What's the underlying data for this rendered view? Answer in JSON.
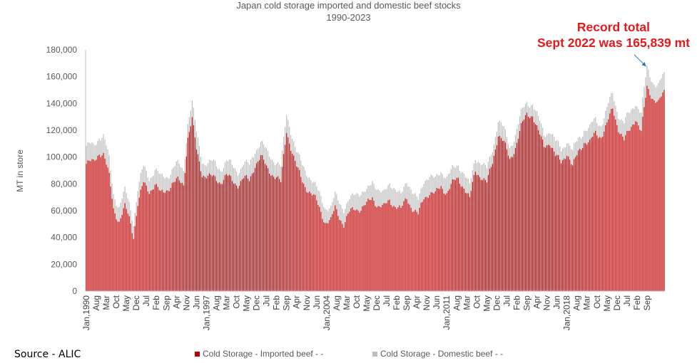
{
  "chart_data": {
    "type": "bar",
    "stacked": true,
    "title": "Japan cold storage imported and domestic beef stocks",
    "subtitle": "1990-2023",
    "ylabel": "MT in store",
    "xlabel": "",
    "ylim": [
      0,
      180000
    ],
    "yticks": [
      "0",
      "20,000",
      "40,000",
      "60,000",
      "80,000",
      "100,000",
      "120,000",
      "140,000",
      "160,000",
      "180,000"
    ],
    "ytick_values": [
      0,
      20000,
      40000,
      60000,
      80000,
      100000,
      120000,
      140000,
      160000,
      180000
    ],
    "xtick_labels": [
      "Jan,1990",
      "Aug",
      "Mar",
      "Oct",
      "May",
      "Dec",
      "Jul",
      "Feb",
      "Sep",
      "Apr",
      "Nov",
      "Jun",
      "Jan,1997",
      "Aug",
      "Mar",
      "Oct",
      "May",
      "Dec",
      "Jul",
      "Feb",
      "Sep",
      "Apr",
      "Nov",
      "Jun",
      "Jan,2004",
      "Aug",
      "Mar",
      "Oct",
      "May",
      "Dec",
      "Jul",
      "Feb",
      "Sep",
      "Apr",
      "Nov",
      "Jun",
      "Jan,2011",
      "Aug",
      "Mar",
      "Oct",
      "May",
      "Dec",
      "Jul",
      "Feb",
      "Sep",
      "Apr",
      "Nov",
      "Jun",
      "Jan,2018",
      "Aug",
      "Mar",
      "Oct",
      "May",
      "Dec",
      "Jul",
      "Feb",
      "Sep"
    ],
    "series": [
      {
        "name": "Cold Storage - Imported beef - -",
        "color": "#c00000"
      },
      {
        "name": "Cold Storage - Domestic beef - -",
        "color": "#bfbfbf"
      }
    ],
    "monthly_start": "1990-01",
    "anchors_imported": [
      [
        "1990-01",
        95000
      ],
      [
        "1990-06",
        96000
      ],
      [
        "1990-10",
        104000
      ],
      [
        "1991-01",
        102000
      ],
      [
        "1991-05",
        85000
      ],
      [
        "1991-08",
        62000
      ],
      [
        "1991-12",
        52000
      ],
      [
        "1992-04",
        62000
      ],
      [
        "1992-07",
        55000
      ],
      [
        "1992-10",
        42000
      ],
      [
        "1993-01",
        65000
      ],
      [
        "1993-05",
        80000
      ],
      [
        "1993-09",
        75000
      ],
      [
        "1994-01",
        80000
      ],
      [
        "1994-05",
        72000
      ],
      [
        "1994-09",
        76000
      ],
      [
        "1995-01",
        80000
      ],
      [
        "1995-05",
        82000
      ],
      [
        "1995-09",
        80000
      ],
      [
        "1995-12",
        115000
      ],
      [
        "1996-03",
        128000
      ],
      [
        "1996-06",
        105000
      ],
      [
        "1996-10",
        88000
      ],
      [
        "1997-03",
        85000
      ],
      [
        "1997-07",
        84000
      ],
      [
        "1997-11",
        82000
      ],
      [
        "1998-03",
        86000
      ],
      [
        "1998-07",
        82000
      ],
      [
        "1998-11",
        80000
      ],
      [
        "1999-03",
        84000
      ],
      [
        "1999-07",
        82000
      ],
      [
        "1999-11",
        95000
      ],
      [
        "2000-03",
        100000
      ],
      [
        "2000-07",
        92000
      ],
      [
        "2000-11",
        88000
      ],
      [
        "2001-02",
        85000
      ],
      [
        "2001-05",
        80000
      ],
      [
        "2001-09",
        120000
      ],
      [
        "2001-12",
        108000
      ],
      [
        "2002-04",
        92000
      ],
      [
        "2002-08",
        82000
      ],
      [
        "2002-12",
        76000
      ],
      [
        "2003-04",
        70000
      ],
      [
        "2003-08",
        62000
      ],
      [
        "2003-12",
        52000
      ],
      [
        "2004-04",
        52000
      ],
      [
        "2004-07",
        62000
      ],
      [
        "2004-10",
        56000
      ],
      [
        "2005-01",
        50000
      ],
      [
        "2005-05",
        58000
      ],
      [
        "2005-09",
        62000
      ],
      [
        "2006-01",
        62000
      ],
      [
        "2006-05",
        64000
      ],
      [
        "2006-09",
        70000
      ],
      [
        "2007-01",
        64000
      ],
      [
        "2007-05",
        62000
      ],
      [
        "2007-09",
        68000
      ],
      [
        "2008-01",
        64000
      ],
      [
        "2008-05",
        60000
      ],
      [
        "2008-09",
        70000
      ],
      [
        "2009-01",
        62000
      ],
      [
        "2009-05",
        56000
      ],
      [
        "2009-09",
        70000
      ],
      [
        "2010-01",
        74000
      ],
      [
        "2010-05",
        72000
      ],
      [
        "2010-09",
        78000
      ],
      [
        "2011-01",
        74000
      ],
      [
        "2011-05",
        80000
      ],
      [
        "2011-09",
        84000
      ],
      [
        "2012-01",
        78000
      ],
      [
        "2012-05",
        68000
      ],
      [
        "2012-09",
        90000
      ],
      [
        "2013-01",
        86000
      ],
      [
        "2013-05",
        80000
      ],
      [
        "2013-09",
        96000
      ],
      [
        "2014-01",
        118000
      ],
      [
        "2014-05",
        110000
      ],
      [
        "2014-09",
        98000
      ],
      [
        "2015-01",
        108000
      ],
      [
        "2015-05",
        122000
      ],
      [
        "2015-09",
        132000
      ],
      [
        "2016-01",
        132000
      ],
      [
        "2016-05",
        118000
      ],
      [
        "2016-09",
        108000
      ],
      [
        "2017-01",
        112000
      ],
      [
        "2017-05",
        100000
      ],
      [
        "2017-09",
        96000
      ],
      [
        "2018-01",
        104000
      ],
      [
        "2018-05",
        92000
      ],
      [
        "2018-09",
        104000
      ],
      [
        "2019-01",
        112000
      ],
      [
        "2019-05",
        110000
      ],
      [
        "2019-09",
        118000
      ],
      [
        "2020-01",
        116000
      ],
      [
        "2020-05",
        124000
      ],
      [
        "2020-09",
        136000
      ],
      [
        "2021-01",
        122000
      ],
      [
        "2021-05",
        112000
      ],
      [
        "2021-09",
        120000
      ],
      [
        "2022-01",
        130000
      ],
      [
        "2022-05",
        118000
      ],
      [
        "2022-09",
        152000
      ],
      [
        "2023-01",
        145000
      ],
      [
        "2023-05",
        140000
      ],
      [
        "2023-09",
        148000
      ]
    ],
    "anchors_domestic": [
      [
        "1990-01",
        12000
      ],
      [
        "1991-01",
        13000
      ],
      [
        "1992-01",
        11000
      ],
      [
        "1993-01",
        11000
      ],
      [
        "1995-06",
        11000
      ],
      [
        "1996-03",
        12000
      ],
      [
        "1997-01",
        10000
      ],
      [
        "2000-01",
        11000
      ],
      [
        "2002-01",
        12000
      ],
      [
        "2004-01",
        10000
      ],
      [
        "2006-01",
        11000
      ],
      [
        "2008-01",
        12000
      ],
      [
        "2010-01",
        12000
      ],
      [
        "2012-01",
        10000
      ],
      [
        "2014-01",
        10000
      ],
      [
        "2016-01",
        9000
      ],
      [
        "2018-01",
        10000
      ],
      [
        "2020-01",
        10000
      ],
      [
        "2022-09",
        13839
      ],
      [
        "2023-09",
        12000
      ]
    ],
    "annotations": [
      {
        "text_lines": [
          "Record total",
          "Sept 2022 was 165,839 mt"
        ],
        "x": "2022-09",
        "y": 165839,
        "color": "#e31a1c"
      }
    ],
    "grid": false,
    "legend_position": "bottom"
  },
  "footer": {
    "source": "Source - ALIC"
  }
}
